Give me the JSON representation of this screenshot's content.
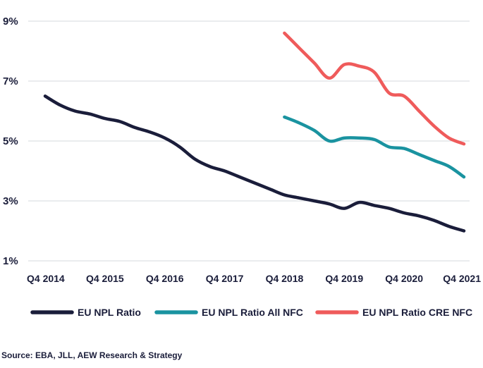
{
  "chart_data": {
    "type": "line",
    "title": "",
    "xlabel": "",
    "ylabel": "",
    "x_ticks": [
      "Q4 2014",
      "Q4 2015",
      "Q4 2016",
      "Q4 2017",
      "Q4 2018",
      "Q4 2019",
      "Q4 2020",
      "Q4 2021"
    ],
    "y_ticks": [
      "9%",
      "7%",
      "5%",
      "3%",
      "1%"
    ],
    "ylim": [
      1,
      9
    ],
    "xlim": [
      2014.75,
      2021.75
    ],
    "grid": "horizontal",
    "legend_position": "bottom",
    "series": [
      {
        "name": "EU NPL Ratio",
        "color": "#1a1d3a",
        "x": [
          2014.75,
          2015.0,
          2015.25,
          2015.5,
          2015.75,
          2016.0,
          2016.25,
          2016.5,
          2016.75,
          2017.0,
          2017.25,
          2017.5,
          2017.75,
          2018.0,
          2018.25,
          2018.5,
          2018.75,
          2019.0,
          2019.25,
          2019.5,
          2019.75,
          2020.0,
          2020.25,
          2020.5,
          2020.75,
          2021.0,
          2021.25,
          2021.5,
          2021.75
        ],
        "values": [
          6.5,
          6.2,
          6.0,
          5.9,
          5.75,
          5.65,
          5.45,
          5.3,
          5.1,
          4.8,
          4.4,
          4.15,
          4.0,
          3.8,
          3.6,
          3.4,
          3.2,
          3.1,
          3.0,
          2.9,
          2.75,
          2.95,
          2.85,
          2.75,
          2.6,
          2.5,
          2.35,
          2.15,
          2.0
        ]
      },
      {
        "name": "EU NPL Ratio All NFC",
        "color": "#1a93a0",
        "x": [
          2018.75,
          2019.0,
          2019.25,
          2019.5,
          2019.75,
          2020.0,
          2020.25,
          2020.5,
          2020.75,
          2021.0,
          2021.25,
          2021.5,
          2021.75
        ],
        "values": [
          5.8,
          5.6,
          5.35,
          5.0,
          5.1,
          5.1,
          5.05,
          4.8,
          4.75,
          4.55,
          4.35,
          4.15,
          3.8
        ]
      },
      {
        "name": "EU NPL Ratio CRE NFC",
        "color": "#ef5b5b",
        "x": [
          2018.75,
          2019.0,
          2019.25,
          2019.5,
          2019.75,
          2020.0,
          2020.25,
          2020.5,
          2020.75,
          2021.0,
          2021.25,
          2021.5,
          2021.75
        ],
        "values": [
          8.6,
          8.1,
          7.6,
          7.1,
          7.55,
          7.5,
          7.3,
          6.6,
          6.5,
          6.0,
          5.5,
          5.1,
          4.9
        ]
      }
    ]
  },
  "source_note": "Source: EBA, JLL, AEW Research & Strategy"
}
